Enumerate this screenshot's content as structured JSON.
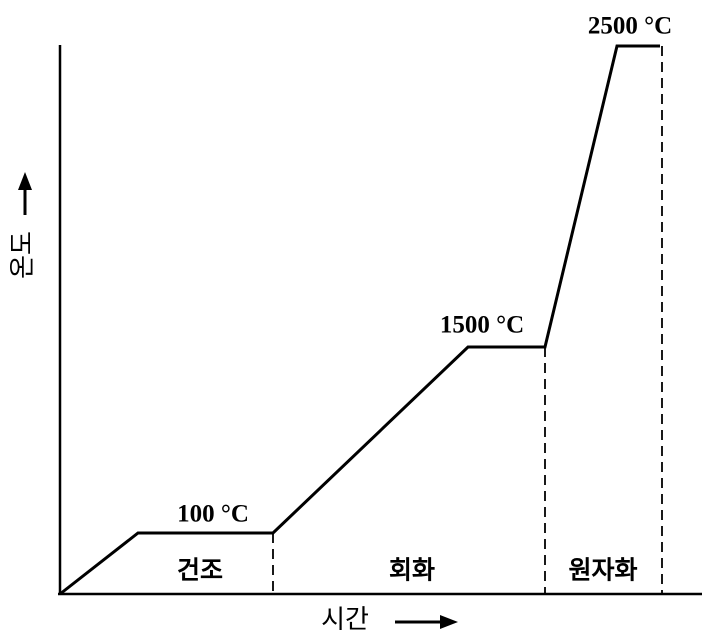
{
  "axes": {
    "y_label": "온도",
    "x_label": "시간"
  },
  "temperatures": [
    "100 °C",
    "1500 °C",
    "2500 °C"
  ],
  "stages": [
    "건조",
    "회화",
    "원자화"
  ]
}
